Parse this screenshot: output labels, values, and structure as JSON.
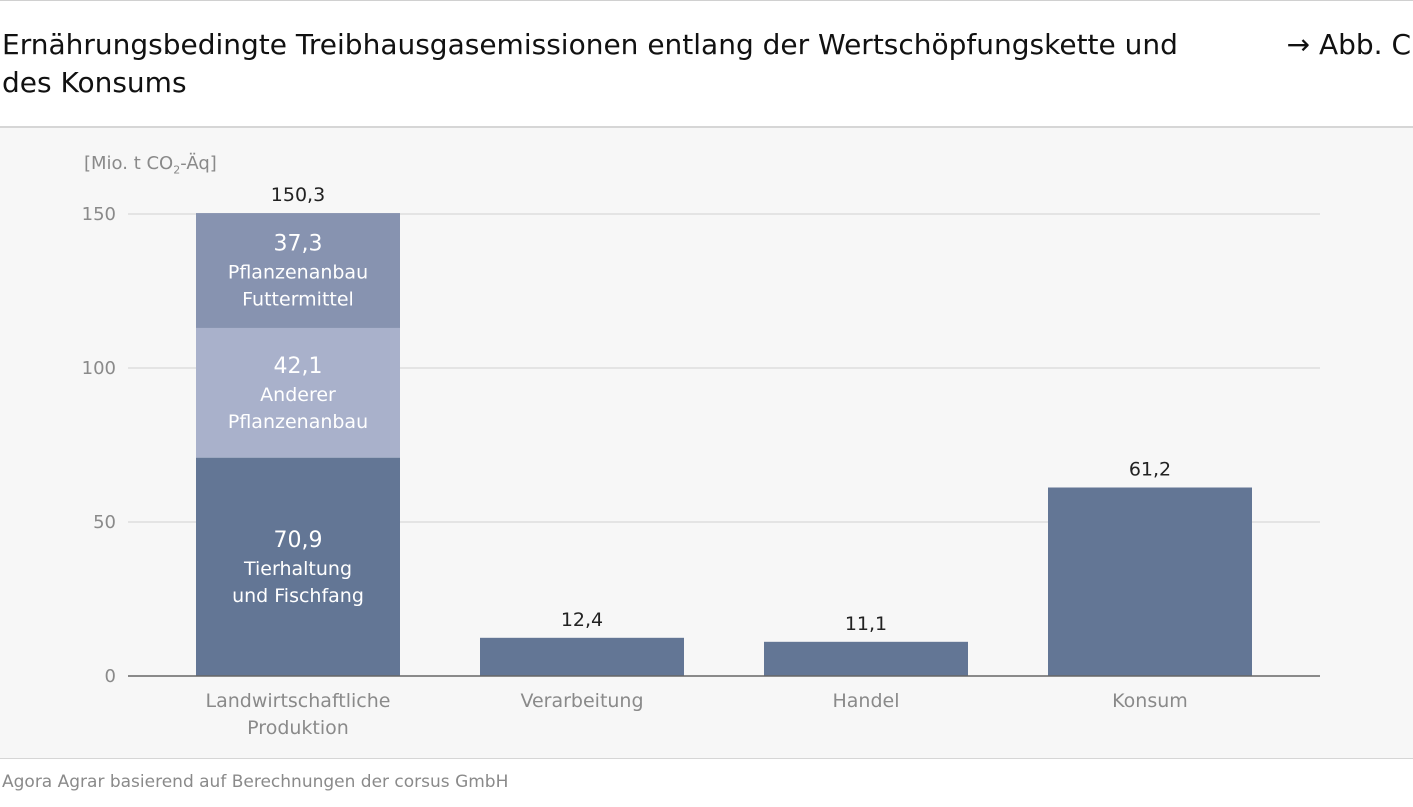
{
  "header": {
    "title": "Ernährungsbedingte Treibhausgasemissionen entlang der Wertschöpfungskette und des Konsums",
    "figure_ref": "→ Abb. C"
  },
  "source": "Agora Agrar basierend auf Berechnungen der corsus GmbH",
  "chart_data": {
    "type": "bar",
    "stacked": true,
    "ylabel_prefix": "[Mio. t CO",
    "ylabel_sub": "2",
    "ylabel_suffix": "-Äq]",
    "ylim": [
      0,
      150
    ],
    "yticks": [
      0,
      50,
      100,
      150
    ],
    "grid": true,
    "categories": [
      "Landwirtschaftliche Produktion",
      "Verarbeitung",
      "Handel",
      "Konsum"
    ],
    "totals": [
      "150,3",
      "12,4",
      "11,1",
      "61,2"
    ],
    "stacks": [
      [
        {
          "value": 70.9,
          "label": "70,9",
          "name": "Tierhaltung und Fischfang",
          "color": "#637695"
        },
        {
          "value": 42.1,
          "label": "42,1",
          "name": "Anderer Pflanzenanbau",
          "color": "#a9b1cb"
        },
        {
          "value": 37.3,
          "label": "37,3",
          "name": "Pflanzenanbau Futtermittel",
          "color": "#8793b0"
        }
      ],
      [
        {
          "value": 12.4,
          "color": "#637695"
        }
      ],
      [
        {
          "value": 11.1,
          "color": "#637695"
        }
      ],
      [
        {
          "value": 61.2,
          "color": "#637695"
        }
      ]
    ]
  }
}
